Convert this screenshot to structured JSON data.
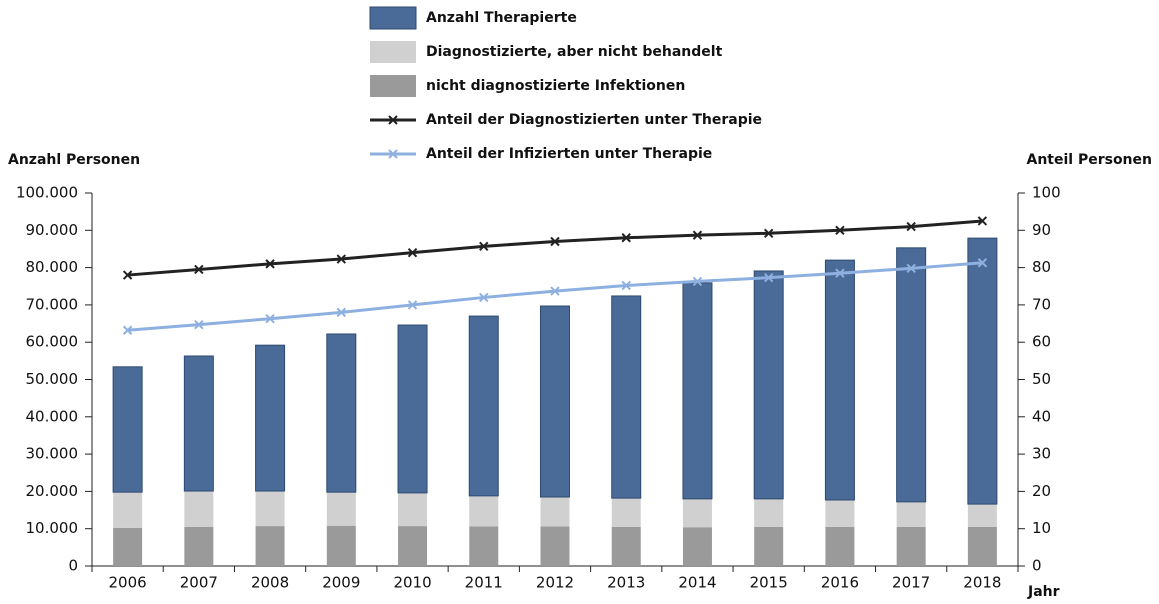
{
  "chart_data": {
    "type": "bar",
    "y_label": "Anzahl Personen",
    "y2_label": "Anteil Personen",
    "x_label": "Jahr",
    "categories": [
      "2006",
      "2007",
      "2008",
      "2009",
      "2010",
      "2011",
      "2012",
      "2013",
      "2014",
      "2015",
      "2016",
      "2017",
      "2018"
    ],
    "series": [
      {
        "name": "Anzahl Therapierte",
        "type": "bar",
        "color": "#4a6b98",
        "values": [
          33600,
          36200,
          39100,
          42400,
          45000,
          48200,
          51200,
          54200,
          57900,
          61100,
          64300,
          68100,
          71300
        ]
      },
      {
        "name": "Diagnostizierte, aber nicht behandelt",
        "type": "bar",
        "color": "#d0d0d0",
        "values": [
          9600,
          9600,
          9400,
          9000,
          8900,
          8200,
          7900,
          7700,
          7600,
          7500,
          7200,
          6700,
          6100
        ]
      },
      {
        "name": "nicht diagnostizierte Infektionen",
        "type": "bar",
        "color": "#9a9a9a",
        "values": [
          10200,
          10500,
          10700,
          10800,
          10700,
          10600,
          10600,
          10500,
          10400,
          10500,
          10500,
          10500,
          10500
        ]
      },
      {
        "name": "Anteil der Diagnostizierten unter Therapie",
        "type": "line",
        "axis": "y2",
        "color": "#222222",
        "values": [
          78,
          79.5,
          81,
          82.3,
          84,
          85.7,
          87,
          88,
          88.7,
          89.2,
          90,
          91,
          92.5
        ]
      },
      {
        "name": "Anteil der Infizierten unter Therapie",
        "type": "line",
        "axis": "y2",
        "color": "#8eb0e0",
        "values": [
          63.2,
          64.7,
          66.3,
          68,
          70,
          72,
          73.7,
          75.2,
          76.3,
          77.3,
          78.5,
          79.8,
          81.3
        ]
      }
    ],
    "stack_order": [
      2,
      1,
      0
    ],
    "ylim": [
      0,
      100000
    ],
    "yticks": [
      0,
      {
        "value": 10000,
        "label": "10.000"
      },
      {
        "value": 20000,
        "label": "20.000"
      },
      {
        "value": 30000,
        "label": "30.000"
      },
      {
        "value": 40000,
        "label": "40.000"
      },
      {
        "value": 50000,
        "label": "50.000"
      },
      {
        "value": 60000,
        "label": "60.000"
      },
      {
        "value": 70000,
        "label": "70.000"
      },
      {
        "value": 80000,
        "label": "80.000"
      },
      {
        "value": 90000,
        "label": "90.000"
      },
      {
        "value": 100000,
        "label": "100.000"
      }
    ],
    "y2lim": [
      0,
      100
    ],
    "y2ticks": [
      0,
      10,
      20,
      30,
      40,
      50,
      60,
      70,
      80,
      90,
      100
    ]
  }
}
